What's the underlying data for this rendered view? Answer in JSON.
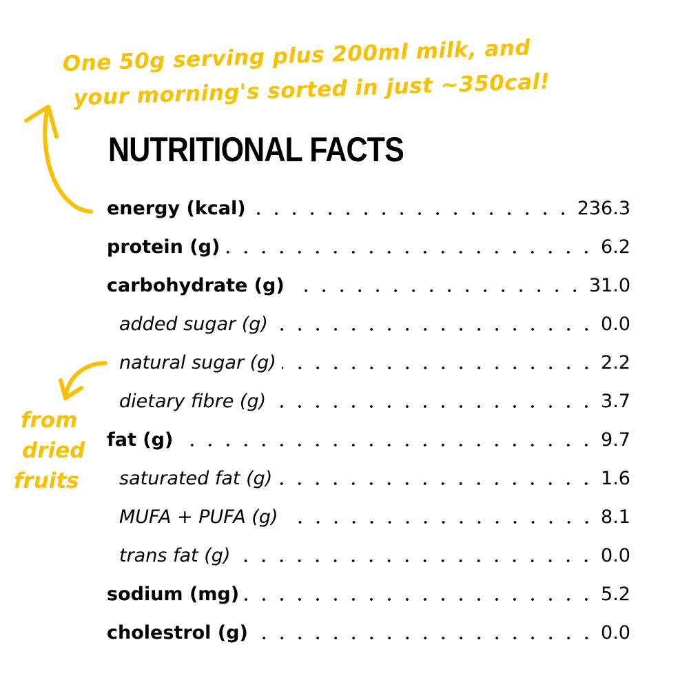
{
  "annotation_top": [
    "One 50g serving plus 200ml milk, and",
    "your morning's sorted in just ~350cal!"
  ],
  "annotation_side": [
    "from",
    "dried",
    "fruits"
  ],
  "title": "NUTRITIONAL FACTS",
  "accent_color": "#F9C000",
  "rows": [
    {
      "label": "energy (kcal)",
      "value": "236.3",
      "sub": false
    },
    {
      "label": "protein (g)",
      "value": "6.2",
      "sub": false
    },
    {
      "label": "carbohydrate (g)",
      "value": "31.0",
      "sub": false
    },
    {
      "label": "added sugar (g)",
      "value": "0.0",
      "sub": true
    },
    {
      "label": "natural sugar (g)",
      "value": "2.2",
      "sub": true
    },
    {
      "label": "dietary fibre (g)",
      "value": "3.7",
      "sub": true
    },
    {
      "label": "fat (g)",
      "value": "9.7",
      "sub": false
    },
    {
      "label": "saturated fat (g)",
      "value": "1.6",
      "sub": true
    },
    {
      "label": "MUFA + PUFA (g)",
      "value": "8.1",
      "sub": true
    },
    {
      "label": "trans fat (g)",
      "value": "0.0",
      "sub": true
    },
    {
      "label": "sodium (mg)",
      "value": "5.2",
      "sub": false
    },
    {
      "label": "cholestrol (g)",
      "value": "0.0",
      "sub": false
    }
  ]
}
